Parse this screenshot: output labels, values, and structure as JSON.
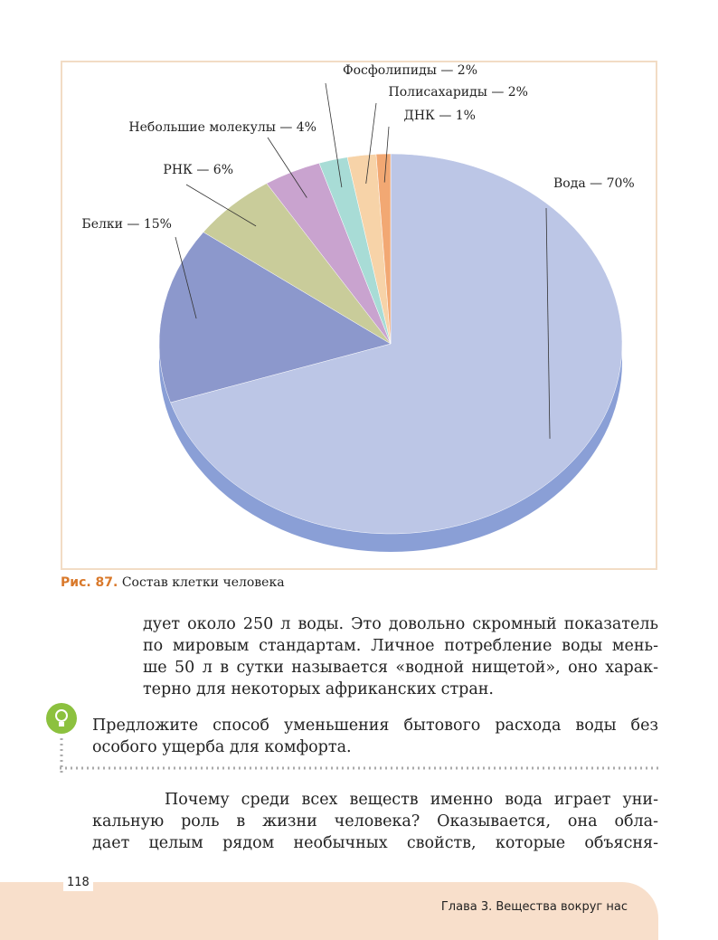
{
  "chart_data": {
    "type": "pie",
    "categories": [
      "Вода — 70%",
      "Белки — 15%",
      "РНК — 6%",
      "Небольшие молекулы — 4%",
      "Фосфолипиды — 2%",
      "Полисахариды — 2%",
      "ДНК — 1%"
    ],
    "values": [
      70,
      15,
      6,
      4,
      2,
      2,
      1
    ],
    "colors": [
      "#bcc6e6",
      "#8c98cc",
      "#c9cc9a",
      "#c9a3cf",
      "#a8dcd6",
      "#f7d3a8",
      "#f2a873"
    ]
  },
  "caption": {
    "number": "Рис. 87.",
    "text": "Состав клетки человека"
  },
  "paragraph1": [
    "дует около 250 л воды. Это довольно скромный показатель",
    "по мировым стандартам. Личное потребление воды мень-",
    "ше 50 л в сутки называется «водной нищетой», оно харак-",
    "терно для некоторых африканских стран."
  ],
  "question": [
    "Предложите способ уменьшения бытового расхода воды без",
    "особого ущерба для комфорта."
  ],
  "paragraph2": [
    "Почему среди всех веществ именно вода играет уни-",
    "кальную роль в жизни человека? Оказывается, она обла-",
    "дает целым рядом необычных свойств, которые объясня-"
  ],
  "page_number": "118",
  "footer": "Глава 3. Вещества вокруг нас"
}
